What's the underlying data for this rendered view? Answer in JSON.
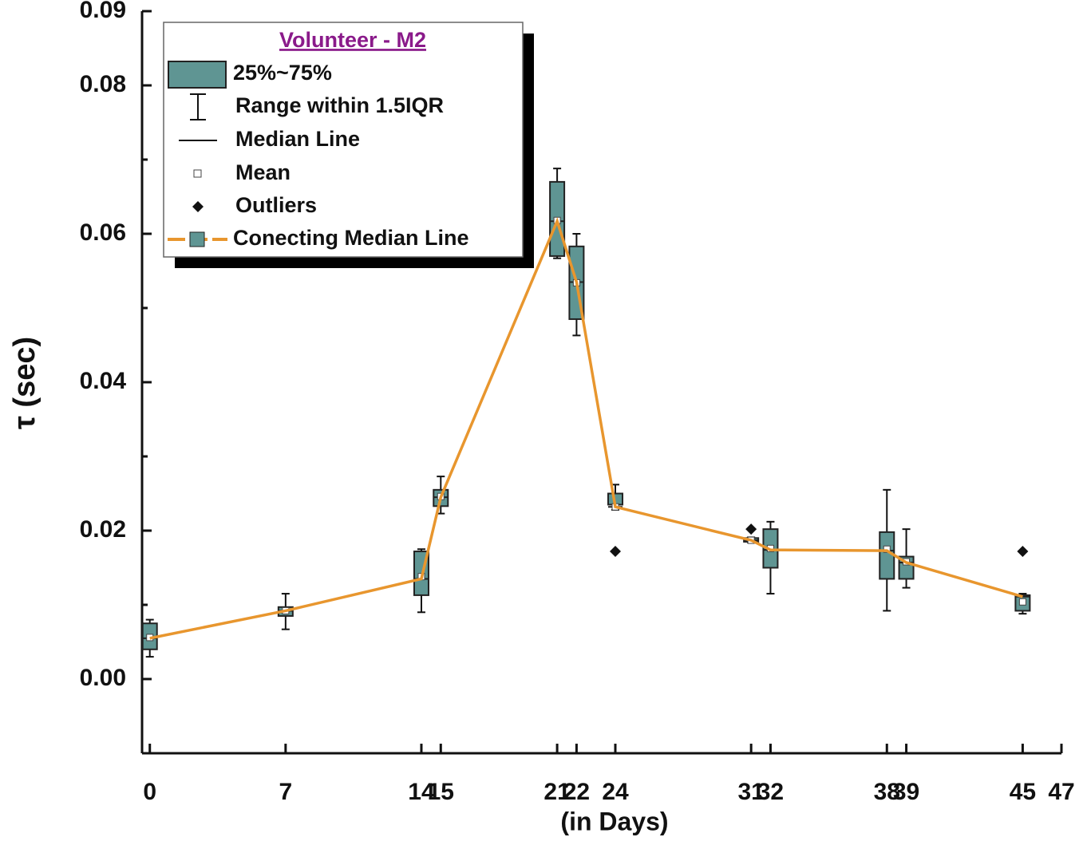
{
  "chart_data": {
    "type": "box",
    "ylabel": "τ (sec)",
    "xlabel": "(in Days)",
    "legend_title": "Volunteer - M2",
    "legend": [
      "25%~75%",
      "Range within 1.5IQR",
      "Median Line",
      "Mean",
      "Outliers",
      "Conecting Median Line"
    ],
    "box_color": "#5f9593",
    "line_color": "#e8962e",
    "x": [
      0,
      7,
      14,
      15,
      21,
      22,
      24,
      31,
      32,
      38,
      39,
      45
    ],
    "whislo": [
      0.003,
      0.0067,
      0.009,
      0.0223,
      0.0567,
      0.0463,
      0.0228,
      0.0184,
      0.0115,
      0.0092,
      0.0123,
      0.0088
    ],
    "q1": [
      0.004,
      0.0085,
      0.0113,
      0.0233,
      0.057,
      0.0485,
      0.0235,
      0.0185,
      0.015,
      0.0135,
      0.0135,
      0.0092
    ],
    "median": [
      0.0055,
      0.0092,
      0.0135,
      0.0245,
      0.0617,
      0.0535,
      0.0232,
      0.0187,
      0.0174,
      0.0173,
      0.0157,
      0.0111
    ],
    "q3": [
      0.0075,
      0.0097,
      0.0172,
      0.0255,
      0.067,
      0.0583,
      0.025,
      0.019,
      0.0202,
      0.0198,
      0.0165,
      0.0113
    ],
    "whishi": [
      0.008,
      0.0115,
      0.0175,
      0.0273,
      0.0688,
      0.06,
      0.0262,
      0.0191,
      0.0212,
      0.0255,
      0.0202,
      0.0115
    ],
    "mean": [
      0.0056,
      0.0092,
      0.0138,
      0.0246,
      0.0618,
      0.0534,
      0.0232,
      0.0187,
      0.0176,
      0.0175,
      0.0158,
      0.0104
    ],
    "outliers": {
      "x": [
        24,
        31,
        45
      ],
      "y": [
        0.0172,
        0.0202,
        0.0172
      ]
    },
    "xlim": [
      -0.4,
      47
    ],
    "xticks": [
      0,
      7,
      14,
      15,
      21,
      22,
      24,
      31,
      32,
      38,
      39,
      45,
      47
    ],
    "ylim": [
      -0.01,
      0.09
    ],
    "yticks": [
      {
        "value": 0,
        "label": "0.00"
      },
      {
        "value": 0.02,
        "label": "0.02"
      },
      {
        "value": 0.04,
        "label": "0.04"
      },
      {
        "value": 0.06,
        "label": "0.06"
      },
      {
        "value": 0.08,
        "label": "0.08"
      },
      0.09
    ],
    "yminorticks": [
      -0.01,
      0.01,
      0.03,
      0.05,
      0.07
    ]
  }
}
